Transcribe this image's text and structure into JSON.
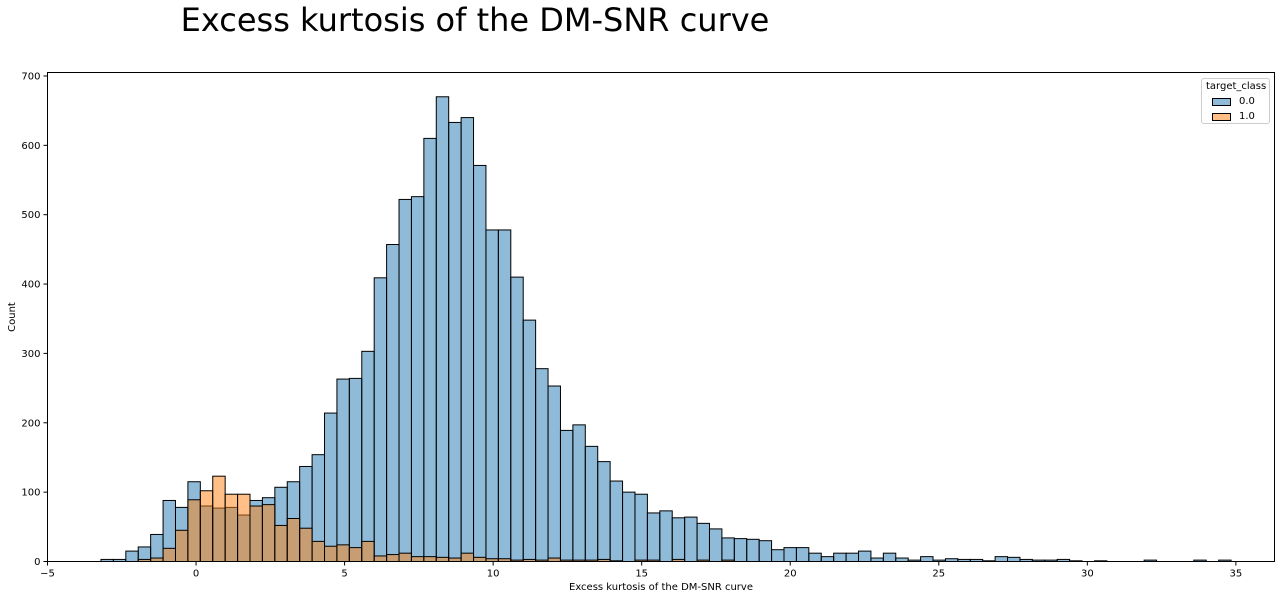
{
  "chart_data": {
    "type": "histogram",
    "title": "Excess kurtosis of the DM-SNR curve",
    "xlabel": "Excess kurtosis of the DM-SNR curve",
    "ylabel": "Count",
    "xlim": [
      -5,
      36.3
    ],
    "ylim": [
      0,
      705
    ],
    "xticks": [
      "−5",
      "0",
      "5",
      "10",
      "15",
      "20",
      "25",
      "30",
      "35"
    ],
    "yticks": [
      "0",
      "100",
      "200",
      "300",
      "400",
      "500",
      "600",
      "700"
    ],
    "bin_start": -3.2,
    "bin_width": 0.418,
    "grid": false,
    "legend": {
      "title": "target_class",
      "position": "top-right"
    },
    "series": [
      {
        "name": "0.0",
        "color": "#1f77b4",
        "values": [
          3,
          3,
          15,
          21,
          39,
          88,
          78,
          115,
          80,
          77,
          78,
          67,
          88,
          92,
          107,
          115,
          137,
          154,
          214,
          263,
          264,
          303,
          409,
          457,
          522,
          526,
          610,
          670,
          633,
          640,
          571,
          478,
          478,
          410,
          348,
          278,
          253,
          189,
          197,
          166,
          144,
          116,
          100,
          97,
          70,
          73,
          63,
          64,
          55,
          47,
          34,
          33,
          32,
          30,
          17,
          20,
          20,
          12,
          7,
          12,
          12,
          15,
          5,
          12,
          5,
          2,
          7,
          2,
          4,
          3,
          3,
          1,
          7,
          6,
          3,
          2,
          2,
          3,
          1,
          0,
          1,
          0,
          0,
          0,
          2,
          0,
          0,
          0,
          2,
          0,
          2
        ]
      },
      {
        "name": "1.0",
        "color": "#ff7f0e",
        "values": [
          0,
          0,
          0,
          3,
          5,
          19,
          45,
          89,
          102,
          123,
          97,
          97,
          80,
          82,
          52,
          62,
          48,
          29,
          22,
          24,
          20,
          29,
          8,
          10,
          12,
          7,
          7,
          6,
          5,
          12,
          6,
          4,
          4,
          2,
          3,
          2,
          5,
          2,
          2,
          2,
          3,
          1,
          0,
          2,
          2,
          0,
          3,
          0,
          2,
          0,
          2,
          0,
          0,
          0,
          0,
          0,
          0,
          0,
          0,
          0,
          0,
          0,
          0,
          0,
          0,
          0,
          0,
          0,
          0,
          0,
          0,
          0,
          0,
          0,
          0,
          0,
          0,
          0,
          0,
          0,
          0,
          0,
          0,
          0,
          0,
          0,
          0,
          0,
          0,
          0,
          0
        ]
      }
    ]
  }
}
